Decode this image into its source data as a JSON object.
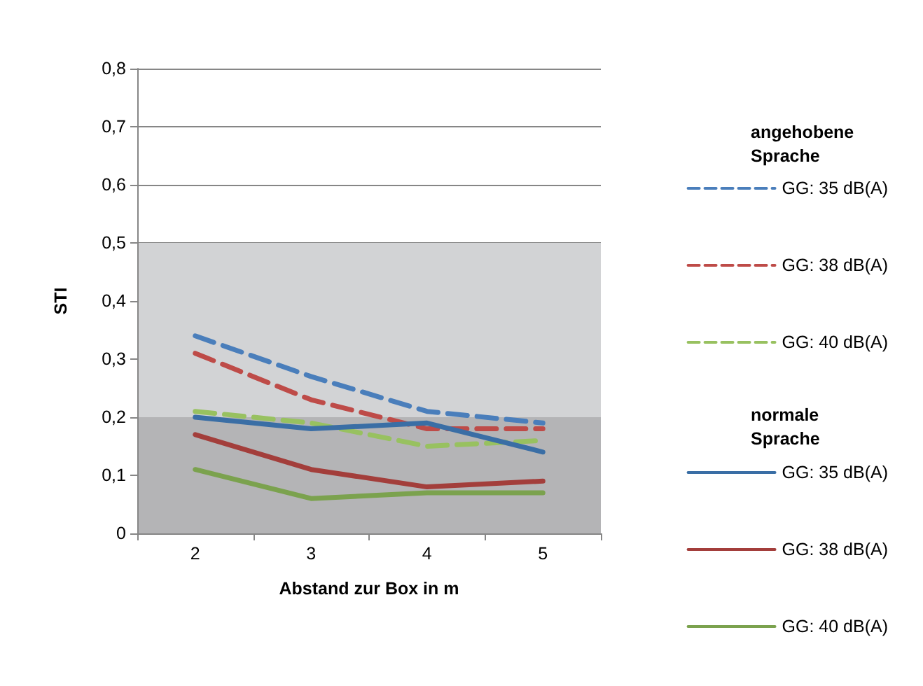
{
  "chart_data": {
    "type": "line",
    "xlabel": "Abstand zur Box in m",
    "ylabel": "STI",
    "categories": [
      "2",
      "3",
      "4",
      "5"
    ],
    "series": [
      {
        "name": "GG: 35 dB(A)",
        "color": "#4a7ebb",
        "line_style": "dashed",
        "values": [
          0.34,
          0.27,
          0.21,
          0.19
        ]
      },
      {
        "name": "GG: 38 dB(A)",
        "color": "#be4b48",
        "line_style": "dashed",
        "values": [
          0.31,
          0.23,
          0.18,
          0.18
        ]
      },
      {
        "name": "GG: 40 dB(A)",
        "color": "#98c160",
        "line_style": "dashed",
        "values": [
          0.21,
          0.19,
          0.15,
          0.16
        ]
      },
      {
        "name": "GG: 35 dB(A)",
        "color": "#3a6ea5",
        "line_style": "solid",
        "values": [
          0.2,
          0.18,
          0.19,
          0.14
        ]
      },
      {
        "name": "GG: 38 dB(A)",
        "color": "#a33e3b",
        "line_style": "solid",
        "values": [
          0.17,
          0.11,
          0.08,
          0.09
        ]
      },
      {
        "name": "GG: 40 dB(A)",
        "color": "#7ba24e",
        "line_style": "solid",
        "values": [
          0.11,
          0.06,
          0.07,
          0.07
        ]
      }
    ],
    "ylim": [
      0,
      0.8
    ],
    "yticks": [
      0,
      {
        "value": 0.1,
        "label": "0,1"
      },
      {
        "value": 0.2,
        "label": "0,2"
      },
      {
        "value": 0.3,
        "label": "0,3"
      },
      {
        "value": 0.4,
        "label": "0,4"
      },
      {
        "value": 0.5,
        "label": "0,5"
      },
      {
        "value": 0.6,
        "label": "0,6"
      },
      {
        "value": 0.7,
        "label": "0,7"
      },
      {
        "value": 0.8,
        "label": "0,8"
      }
    ],
    "bands": [
      {
        "axis": "y",
        "from": 0,
        "to": 0.2,
        "color": "#b4b4b6"
      },
      {
        "axis": "y",
        "from": 0.2,
        "to": 0.5,
        "color": "#d2d3d5"
      }
    ],
    "annotations": [
      "angehobene Sprache",
      "normale Sprache"
    ],
    "grid": "y",
    "legend": "right",
    "marker": "none"
  }
}
